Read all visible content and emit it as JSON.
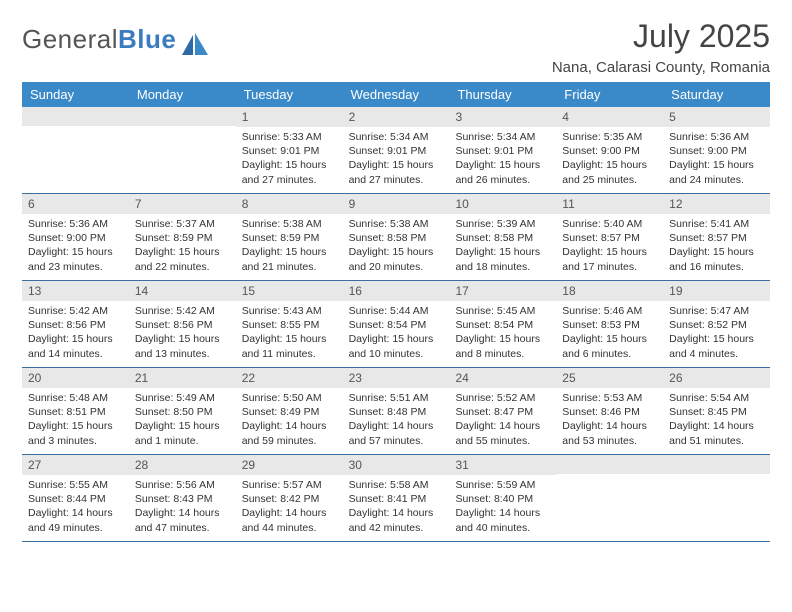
{
  "logo": {
    "word1": "General",
    "word2": "Blue"
  },
  "title": "July 2025",
  "subtitle": "Nana, Calarasi County, Romania",
  "colors": {
    "header_bg": "#3a89c9",
    "header_text": "#ffffff",
    "daynum_bg": "#e8e8e8",
    "week_border": "#3a6ea0",
    "logo_accent": "#3a7cbf",
    "logo_text": "#555555",
    "body_text": "#333333",
    "background": "#ffffff"
  },
  "day_headers": [
    "Sunday",
    "Monday",
    "Tuesday",
    "Wednesday",
    "Thursday",
    "Friday",
    "Saturday"
  ],
  "weeks": [
    [
      {
        "n": "",
        "sr": "",
        "ss": "",
        "dl": ""
      },
      {
        "n": "",
        "sr": "",
        "ss": "",
        "dl": ""
      },
      {
        "n": "1",
        "sr": "Sunrise: 5:33 AM",
        "ss": "Sunset: 9:01 PM",
        "dl": "Daylight: 15 hours and 27 minutes."
      },
      {
        "n": "2",
        "sr": "Sunrise: 5:34 AM",
        "ss": "Sunset: 9:01 PM",
        "dl": "Daylight: 15 hours and 27 minutes."
      },
      {
        "n": "3",
        "sr": "Sunrise: 5:34 AM",
        "ss": "Sunset: 9:01 PM",
        "dl": "Daylight: 15 hours and 26 minutes."
      },
      {
        "n": "4",
        "sr": "Sunrise: 5:35 AM",
        "ss": "Sunset: 9:00 PM",
        "dl": "Daylight: 15 hours and 25 minutes."
      },
      {
        "n": "5",
        "sr": "Sunrise: 5:36 AM",
        "ss": "Sunset: 9:00 PM",
        "dl": "Daylight: 15 hours and 24 minutes."
      }
    ],
    [
      {
        "n": "6",
        "sr": "Sunrise: 5:36 AM",
        "ss": "Sunset: 9:00 PM",
        "dl": "Daylight: 15 hours and 23 minutes."
      },
      {
        "n": "7",
        "sr": "Sunrise: 5:37 AM",
        "ss": "Sunset: 8:59 PM",
        "dl": "Daylight: 15 hours and 22 minutes."
      },
      {
        "n": "8",
        "sr": "Sunrise: 5:38 AM",
        "ss": "Sunset: 8:59 PM",
        "dl": "Daylight: 15 hours and 21 minutes."
      },
      {
        "n": "9",
        "sr": "Sunrise: 5:38 AM",
        "ss": "Sunset: 8:58 PM",
        "dl": "Daylight: 15 hours and 20 minutes."
      },
      {
        "n": "10",
        "sr": "Sunrise: 5:39 AM",
        "ss": "Sunset: 8:58 PM",
        "dl": "Daylight: 15 hours and 18 minutes."
      },
      {
        "n": "11",
        "sr": "Sunrise: 5:40 AM",
        "ss": "Sunset: 8:57 PM",
        "dl": "Daylight: 15 hours and 17 minutes."
      },
      {
        "n": "12",
        "sr": "Sunrise: 5:41 AM",
        "ss": "Sunset: 8:57 PM",
        "dl": "Daylight: 15 hours and 16 minutes."
      }
    ],
    [
      {
        "n": "13",
        "sr": "Sunrise: 5:42 AM",
        "ss": "Sunset: 8:56 PM",
        "dl": "Daylight: 15 hours and 14 minutes."
      },
      {
        "n": "14",
        "sr": "Sunrise: 5:42 AM",
        "ss": "Sunset: 8:56 PM",
        "dl": "Daylight: 15 hours and 13 minutes."
      },
      {
        "n": "15",
        "sr": "Sunrise: 5:43 AM",
        "ss": "Sunset: 8:55 PM",
        "dl": "Daylight: 15 hours and 11 minutes."
      },
      {
        "n": "16",
        "sr": "Sunrise: 5:44 AM",
        "ss": "Sunset: 8:54 PM",
        "dl": "Daylight: 15 hours and 10 minutes."
      },
      {
        "n": "17",
        "sr": "Sunrise: 5:45 AM",
        "ss": "Sunset: 8:54 PM",
        "dl": "Daylight: 15 hours and 8 minutes."
      },
      {
        "n": "18",
        "sr": "Sunrise: 5:46 AM",
        "ss": "Sunset: 8:53 PM",
        "dl": "Daylight: 15 hours and 6 minutes."
      },
      {
        "n": "19",
        "sr": "Sunrise: 5:47 AM",
        "ss": "Sunset: 8:52 PM",
        "dl": "Daylight: 15 hours and 4 minutes."
      }
    ],
    [
      {
        "n": "20",
        "sr": "Sunrise: 5:48 AM",
        "ss": "Sunset: 8:51 PM",
        "dl": "Daylight: 15 hours and 3 minutes."
      },
      {
        "n": "21",
        "sr": "Sunrise: 5:49 AM",
        "ss": "Sunset: 8:50 PM",
        "dl": "Daylight: 15 hours and 1 minute."
      },
      {
        "n": "22",
        "sr": "Sunrise: 5:50 AM",
        "ss": "Sunset: 8:49 PM",
        "dl": "Daylight: 14 hours and 59 minutes."
      },
      {
        "n": "23",
        "sr": "Sunrise: 5:51 AM",
        "ss": "Sunset: 8:48 PM",
        "dl": "Daylight: 14 hours and 57 minutes."
      },
      {
        "n": "24",
        "sr": "Sunrise: 5:52 AM",
        "ss": "Sunset: 8:47 PM",
        "dl": "Daylight: 14 hours and 55 minutes."
      },
      {
        "n": "25",
        "sr": "Sunrise: 5:53 AM",
        "ss": "Sunset: 8:46 PM",
        "dl": "Daylight: 14 hours and 53 minutes."
      },
      {
        "n": "26",
        "sr": "Sunrise: 5:54 AM",
        "ss": "Sunset: 8:45 PM",
        "dl": "Daylight: 14 hours and 51 minutes."
      }
    ],
    [
      {
        "n": "27",
        "sr": "Sunrise: 5:55 AM",
        "ss": "Sunset: 8:44 PM",
        "dl": "Daylight: 14 hours and 49 minutes."
      },
      {
        "n": "28",
        "sr": "Sunrise: 5:56 AM",
        "ss": "Sunset: 8:43 PM",
        "dl": "Daylight: 14 hours and 47 minutes."
      },
      {
        "n": "29",
        "sr": "Sunrise: 5:57 AM",
        "ss": "Sunset: 8:42 PM",
        "dl": "Daylight: 14 hours and 44 minutes."
      },
      {
        "n": "30",
        "sr": "Sunrise: 5:58 AM",
        "ss": "Sunset: 8:41 PM",
        "dl": "Daylight: 14 hours and 42 minutes."
      },
      {
        "n": "31",
        "sr": "Sunrise: 5:59 AM",
        "ss": "Sunset: 8:40 PM",
        "dl": "Daylight: 14 hours and 40 minutes."
      },
      {
        "n": "",
        "sr": "",
        "ss": "",
        "dl": ""
      },
      {
        "n": "",
        "sr": "",
        "ss": "",
        "dl": ""
      }
    ]
  ]
}
